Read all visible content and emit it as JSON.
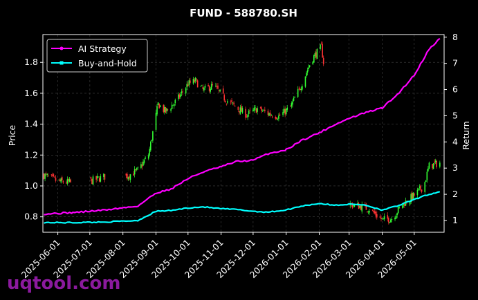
{
  "chart_data": {
    "type": "line",
    "title": "FUND - 588780.SH",
    "ylabel": "Price",
    "y2label": "Return",
    "ylim": [
      0.7,
      1.98
    ],
    "y2lim": [
      0.55,
      8.1
    ],
    "xlim": [
      "2025-05-18",
      "2026-05-29"
    ],
    "y_ticks": [
      "0.8",
      "1.0",
      "1.2",
      "1.4",
      "1.6",
      "1.8"
    ],
    "y2_ticks": [
      "1",
      "2",
      "3",
      "4",
      "5",
      "6",
      "7",
      "8"
    ],
    "x_ticks": [
      "2025-06-01",
      "2025-07-01",
      "2025-08-01",
      "2025-09-01",
      "2025-10-01",
      "2025-11-01",
      "2025-12-01",
      "2026-01-01",
      "2026-02-01",
      "2026-03-01",
      "2026-04-01",
      "2026-05-01"
    ],
    "grid": true,
    "legend_position": "upper-left",
    "candles_up_color": "#33ff33",
    "candles_down_color": "#ff3333",
    "price_close": [
      [
        "2025-05-19",
        1.07
      ],
      [
        "2025-06-01",
        1.03
      ],
      [
        "2025-06-15",
        1.02
      ],
      [
        "2025-07-01",
        1.03
      ],
      [
        "2025-07-15",
        1.06
      ],
      [
        "2025-08-01",
        1.05
      ],
      [
        "2025-08-15",
        1.1
      ],
      [
        "2025-08-25",
        1.2
      ],
      [
        "2025-09-03",
        1.53
      ],
      [
        "2025-09-10",
        1.48
      ],
      [
        "2025-09-20",
        1.55
      ],
      [
        "2025-10-01",
        1.66
      ],
      [
        "2025-10-08",
        1.68
      ],
      [
        "2025-10-15",
        1.62
      ],
      [
        "2025-10-25",
        1.65
      ],
      [
        "2025-11-05",
        1.56
      ],
      [
        "2025-11-15",
        1.51
      ],
      [
        "2025-11-25",
        1.46
      ],
      [
        "2025-12-05",
        1.5
      ],
      [
        "2025-12-15",
        1.47
      ],
      [
        "2025-12-25",
        1.45
      ],
      [
        "2026-01-05",
        1.51
      ],
      [
        "2026-01-15",
        1.65
      ],
      [
        "2026-01-25",
        1.82
      ],
      [
        "2026-02-03",
        1.9
      ],
      [
        "2026-02-05",
        1.8
      ],
      [
        "2026-03-01",
        0.88
      ],
      [
        "2026-03-10",
        0.87
      ],
      [
        "2026-03-20",
        0.85
      ],
      [
        "2026-04-01",
        0.78
      ],
      [
        "2026-04-10",
        0.79
      ],
      [
        "2026-04-20",
        0.88
      ],
      [
        "2026-05-01",
        0.94
      ],
      [
        "2026-05-10",
        1.0
      ],
      [
        "2026-05-15",
        1.13
      ],
      [
        "2026-05-25",
        1.15
      ]
    ],
    "series": [
      {
        "name": "AI Strategy",
        "color": "#ff00ff",
        "values": [
          [
            "2025-05-19",
            1.25
          ],
          [
            "2025-06-15",
            1.3
          ],
          [
            "2025-07-15",
            1.4
          ],
          [
            "2025-08-15",
            1.55
          ],
          [
            "2025-09-01",
            2.05
          ],
          [
            "2025-09-15",
            2.2
          ],
          [
            "2025-10-01",
            2.6
          ],
          [
            "2025-10-15",
            2.85
          ],
          [
            "2025-11-01",
            3.05
          ],
          [
            "2025-11-15",
            3.25
          ],
          [
            "2025-12-01",
            3.3
          ],
          [
            "2025-12-15",
            3.55
          ],
          [
            "2026-01-01",
            3.7
          ],
          [
            "2026-01-15",
            4.05
          ],
          [
            "2026-02-01",
            4.35
          ],
          [
            "2026-02-15",
            4.65
          ],
          [
            "2026-03-01",
            4.9
          ],
          [
            "2026-03-15",
            5.1
          ],
          [
            "2026-04-01",
            5.3
          ],
          [
            "2026-04-15",
            5.8
          ],
          [
            "2026-05-01",
            6.55
          ],
          [
            "2026-05-15",
            7.55
          ],
          [
            "2026-05-25",
            7.95
          ]
        ]
      },
      {
        "name": "Buy-and-Hold",
        "color": "#00ffff",
        "values": [
          [
            "2025-05-19",
            0.92
          ],
          [
            "2025-06-15",
            0.92
          ],
          [
            "2025-07-15",
            0.94
          ],
          [
            "2025-08-15",
            1.0
          ],
          [
            "2025-09-01",
            1.35
          ],
          [
            "2025-09-15",
            1.38
          ],
          [
            "2025-10-01",
            1.48
          ],
          [
            "2025-10-15",
            1.52
          ],
          [
            "2025-11-01",
            1.45
          ],
          [
            "2025-11-15",
            1.42
          ],
          [
            "2025-12-01",
            1.35
          ],
          [
            "2025-12-15",
            1.32
          ],
          [
            "2026-01-01",
            1.4
          ],
          [
            "2026-01-15",
            1.55
          ],
          [
            "2026-02-01",
            1.65
          ],
          [
            "2026-02-15",
            1.58
          ],
          [
            "2026-03-01",
            1.62
          ],
          [
            "2026-03-15",
            1.6
          ],
          [
            "2026-04-01",
            1.4
          ],
          [
            "2026-04-15",
            1.55
          ],
          [
            "2026-05-01",
            1.8
          ],
          [
            "2026-05-15",
            2.0
          ],
          [
            "2026-05-25",
            2.1
          ]
        ]
      }
    ]
  },
  "watermark": "uqtool.com"
}
